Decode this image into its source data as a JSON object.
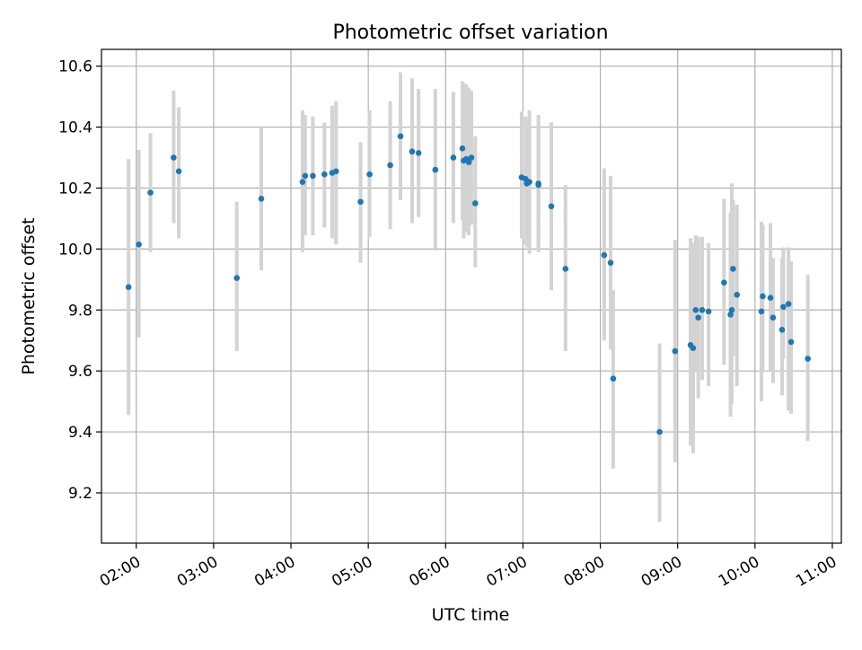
{
  "chart_data": {
    "type": "scatter",
    "title": "Photometric offset variation",
    "xlabel": "UTC time",
    "ylabel": "Photometric offset",
    "x_ticks": [
      "02:00",
      "03:00",
      "04:00",
      "05:00",
      "06:00",
      "07:00",
      "08:00",
      "09:00",
      "10:00",
      "11:00"
    ],
    "y_ticks": [
      "9.2",
      "9.4",
      "9.6",
      "9.8",
      "10.0",
      "10.2",
      "10.4",
      "10.6"
    ],
    "x_unit": "UTC time (HH:MM)",
    "xlim": [
      "01:33",
      "11:07"
    ],
    "ylim": [
      9.035,
      10.655
    ],
    "grid": true,
    "point_color": "#1f77b4",
    "errorbar_color": "#d3d3d3",
    "series": [
      {
        "x": [
          "01:54",
          "02:02",
          "02:11",
          "02:29",
          "02:33",
          "03:18",
          "03:37",
          "04:09",
          "04:11",
          "04:17",
          "04:26",
          "04:32",
          "04:35",
          "04:54",
          "05:01",
          "05:17",
          "05:25",
          "05:34",
          "05:39",
          "05:52",
          "06:06",
          "06:13",
          "06:14",
          "06:16",
          "06:18",
          "06:20",
          "06:23",
          "06:59",
          "07:02",
          "07:03",
          "07:05",
          "07:12",
          "07:12",
          "07:22",
          "07:33",
          "08:03",
          "08:08",
          "08:10",
          "08:46",
          "08:58",
          "09:10",
          "09:12",
          "09:14",
          "09:16",
          "09:19",
          "09:24",
          "09:36",
          "09:41",
          "09:42",
          "09:43",
          "09:46",
          "10:05",
          "10:06",
          "10:12",
          "10:14",
          "10:21",
          "10:22",
          "10:26",
          "10:28",
          "10:41"
        ],
        "y": [
          9.875,
          10.015,
          10.185,
          10.3,
          10.255,
          9.905,
          10.165,
          10.22,
          10.24,
          10.24,
          10.245,
          10.25,
          10.255,
          10.155,
          10.245,
          10.275,
          10.37,
          10.32,
          10.315,
          10.26,
          10.3,
          10.33,
          10.29,
          10.295,
          10.285,
          10.3,
          10.15,
          10.235,
          10.23,
          10.215,
          10.22,
          10.215,
          10.21,
          10.14,
          9.935,
          9.98,
          9.955,
          9.575,
          9.4,
          9.665,
          9.685,
          9.675,
          9.8,
          9.775,
          9.8,
          9.795,
          9.89,
          9.785,
          9.8,
          9.935,
          9.85,
          9.795,
          9.845,
          9.84,
          9.775,
          9.735,
          9.81,
          9.82,
          9.695,
          9.64
        ],
        "err_low": [
          9.455,
          9.71,
          9.99,
          10.085,
          10.035,
          9.665,
          9.93,
          9.99,
          10.045,
          10.045,
          10.07,
          10.035,
          10.015,
          9.955,
          10.04,
          10.065,
          10.16,
          10.085,
          10.105,
          9.995,
          10.085,
          10.095,
          10.035,
          10.055,
          10.045,
          10.08,
          9.94,
          10.035,
          10.015,
          10.005,
          9.985,
          9.99,
          10.0,
          9.865,
          9.665,
          9.7,
          9.67,
          9.28,
          9.105,
          9.3,
          9.355,
          9.33,
          9.6,
          9.51,
          9.57,
          9.55,
          9.62,
          9.45,
          9.49,
          9.65,
          9.55,
          9.5,
          9.6,
          9.6,
          9.56,
          9.52,
          9.64,
          9.47,
          9.46,
          9.37
        ],
        "err_high": [
          10.295,
          10.325,
          10.38,
          10.52,
          10.465,
          10.155,
          10.4,
          10.455,
          10.44,
          10.435,
          10.415,
          10.47,
          10.485,
          10.35,
          10.455,
          10.485,
          10.58,
          10.56,
          10.525,
          10.525,
          10.515,
          10.55,
          10.545,
          10.54,
          10.53,
          10.52,
          10.37,
          10.45,
          10.435,
          10.42,
          10.455,
          10.44,
          10.43,
          10.415,
          10.21,
          10.265,
          10.24,
          9.865,
          9.69,
          10.03,
          10.035,
          10.02,
          10.045,
          10.04,
          10.04,
          10.02,
          10.165,
          10.12,
          10.215,
          10.16,
          10.145,
          10.09,
          10.08,
          10.085,
          9.97,
          9.97,
          10.005,
          10.005,
          9.96,
          9.915
        ]
      }
    ]
  }
}
